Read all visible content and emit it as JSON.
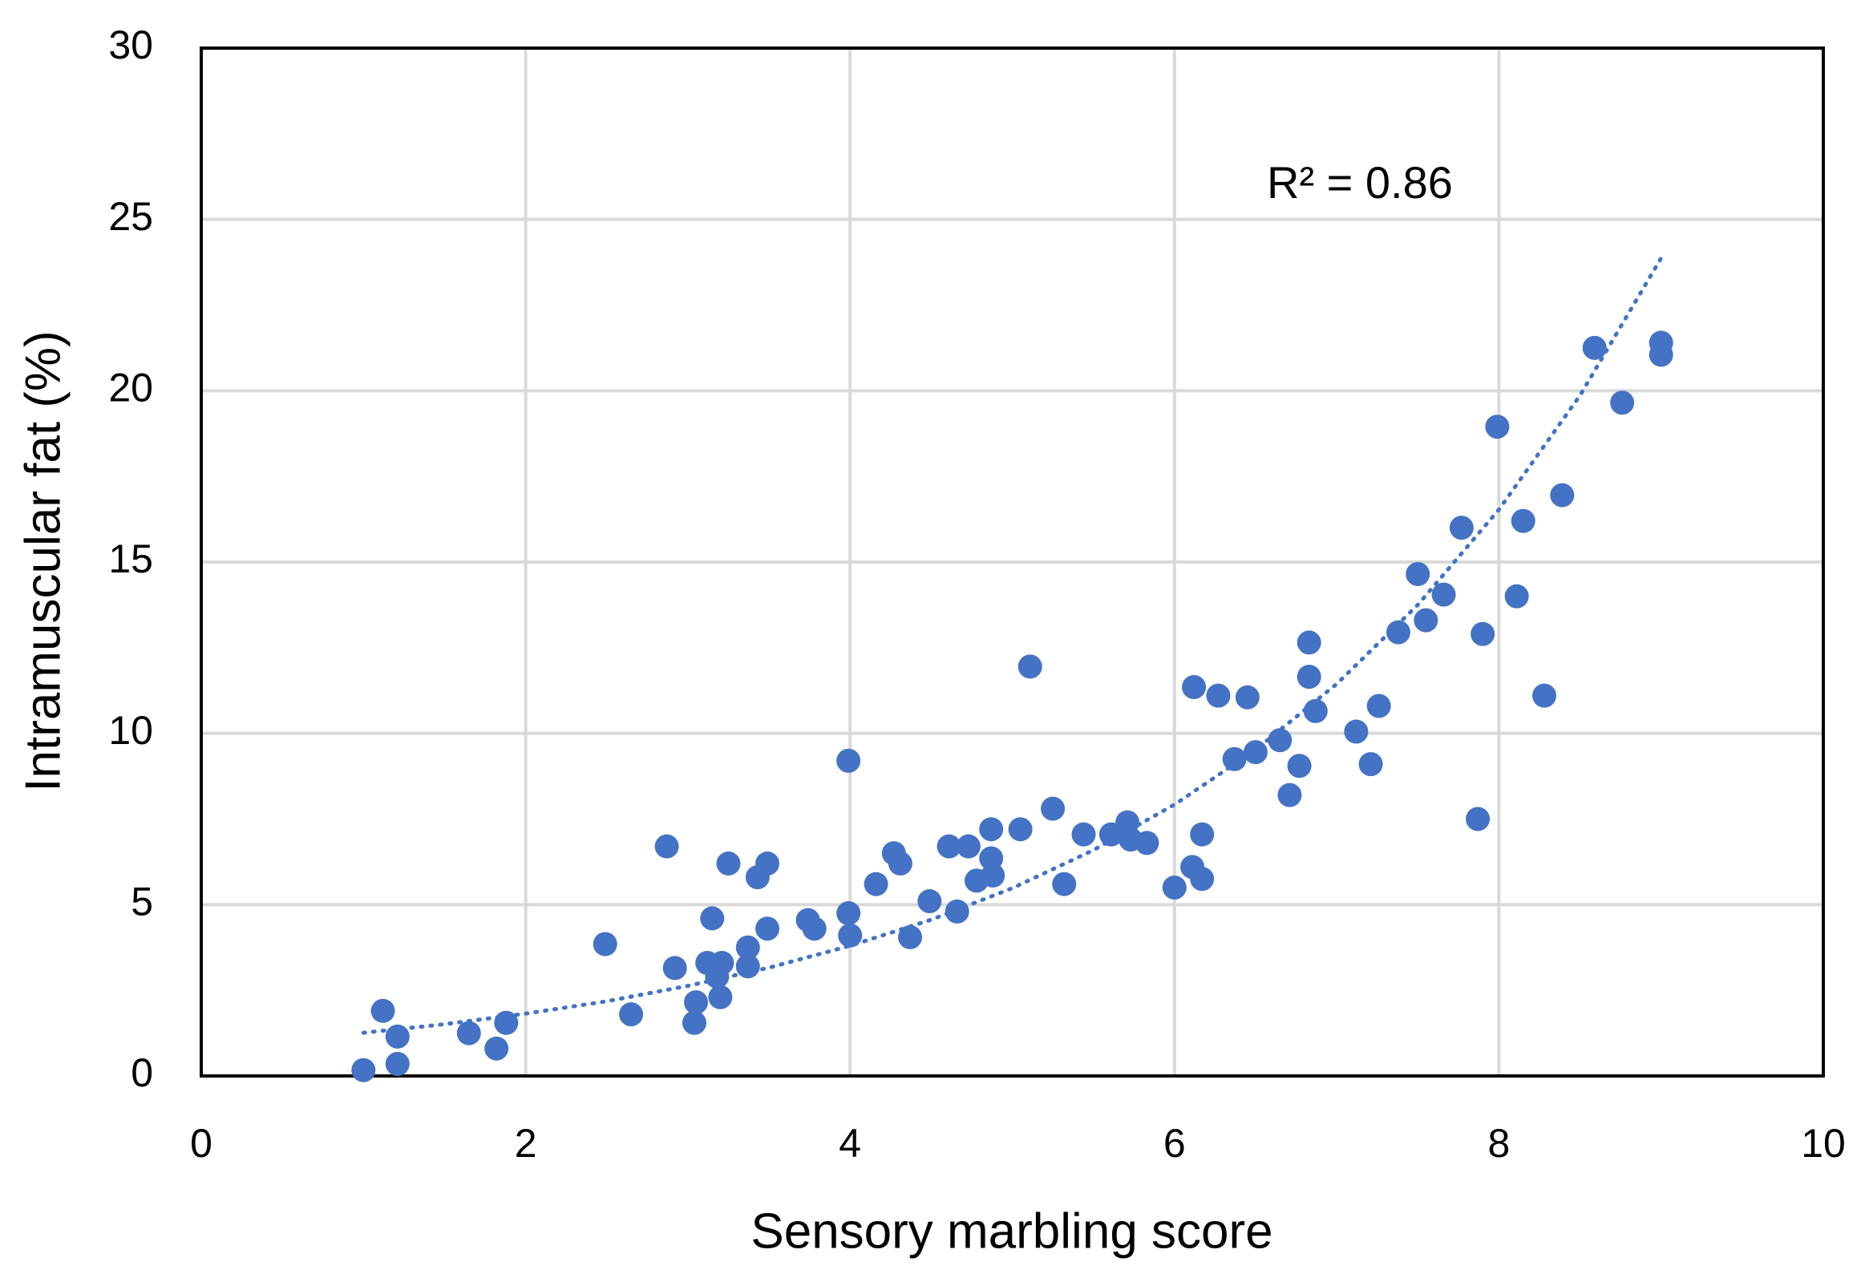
{
  "chart_data": {
    "type": "scatter",
    "xlabel": "Sensory marbling score",
    "ylabel": "Intramuscular fat (%)",
    "annotation": "R² = 0.86",
    "color": "#4472c4",
    "grid": true,
    "xlim": [
      0,
      10
    ],
    "ylim": [
      0,
      30
    ],
    "xticks": [
      0,
      2,
      4,
      6,
      8,
      10
    ],
    "yticks": [
      0,
      5,
      10,
      15,
      20,
      25,
      30
    ],
    "x": [
      1.0,
      1.12,
      1.21,
      1.21,
      1.65,
      1.82,
      1.88,
      2.49,
      2.65,
      2.87,
      2.92,
      3.04,
      3.05,
      3.12,
      3.15,
      3.18,
      3.2,
      3.21,
      3.25,
      3.37,
      3.37,
      3.43,
      3.49,
      3.49,
      3.74,
      3.78,
      3.99,
      3.99,
      4.0,
      4.16,
      4.27,
      4.31,
      4.37,
      4.49,
      4.61,
      4.66,
      4.73,
      4.78,
      4.87,
      4.87,
      4.88,
      5.05,
      5.11,
      5.25,
      5.32,
      5.44,
      5.61,
      5.71,
      5.73,
      5.83,
      6.0,
      6.12,
      6.11,
      6.17,
      6.17,
      6.27,
      6.37,
      6.45,
      6.5,
      6.65,
      6.71,
      6.77,
      6.83,
      6.83,
      6.87,
      7.12,
      7.21,
      7.26,
      7.38,
      7.5,
      7.55,
      7.66,
      7.77,
      7.87,
      7.9,
      7.99,
      8.11,
      8.15,
      8.28,
      8.39,
      8.59,
      8.76,
      9.0,
      9.0
    ],
    "y": [
      0.17,
      1.9,
      1.15,
      0.35,
      1.25,
      0.8,
      1.55,
      3.85,
      1.8,
      6.7,
      3.15,
      1.55,
      2.15,
      3.3,
      4.6,
      2.9,
      2.3,
      3.3,
      6.2,
      3.75,
      3.2,
      5.8,
      6.2,
      4.3,
      4.55,
      4.3,
      9.2,
      4.75,
      4.1,
      5.6,
      6.5,
      6.2,
      4.05,
      5.1,
      6.7,
      4.8,
      6.7,
      5.7,
      7.2,
      6.35,
      5.85,
      7.2,
      11.95,
      7.8,
      5.6,
      7.05,
      7.05,
      7.4,
      6.9,
      6.8,
      5.5,
      11.35,
      6.1,
      5.75,
      7.05,
      11.1,
      9.25,
      11.05,
      9.45,
      9.8,
      8.2,
      9.05,
      12.65,
      11.65,
      10.65,
      10.05,
      9.1,
      10.8,
      12.95,
      14.65,
      13.3,
      14.05,
      16.0,
      7.5,
      12.9,
      18.95,
      14.0,
      16.2,
      11.1,
      16.95,
      21.25,
      19.65,
      21.4,
      21.05
    ],
    "trendline": {
      "x": [
        1,
        1.5,
        2,
        2.5,
        3,
        3.5,
        4,
        4.5,
        5,
        5.5,
        6,
        6.5,
        7,
        7.5,
        8,
        8.5,
        9
      ],
      "y": [
        1.26,
        1.51,
        1.82,
        2.18,
        2.63,
        3.16,
        3.8,
        4.56,
        5.48,
        6.59,
        7.92,
        9.52,
        11.44,
        13.75,
        16.53,
        19.86,
        23.87
      ]
    }
  }
}
